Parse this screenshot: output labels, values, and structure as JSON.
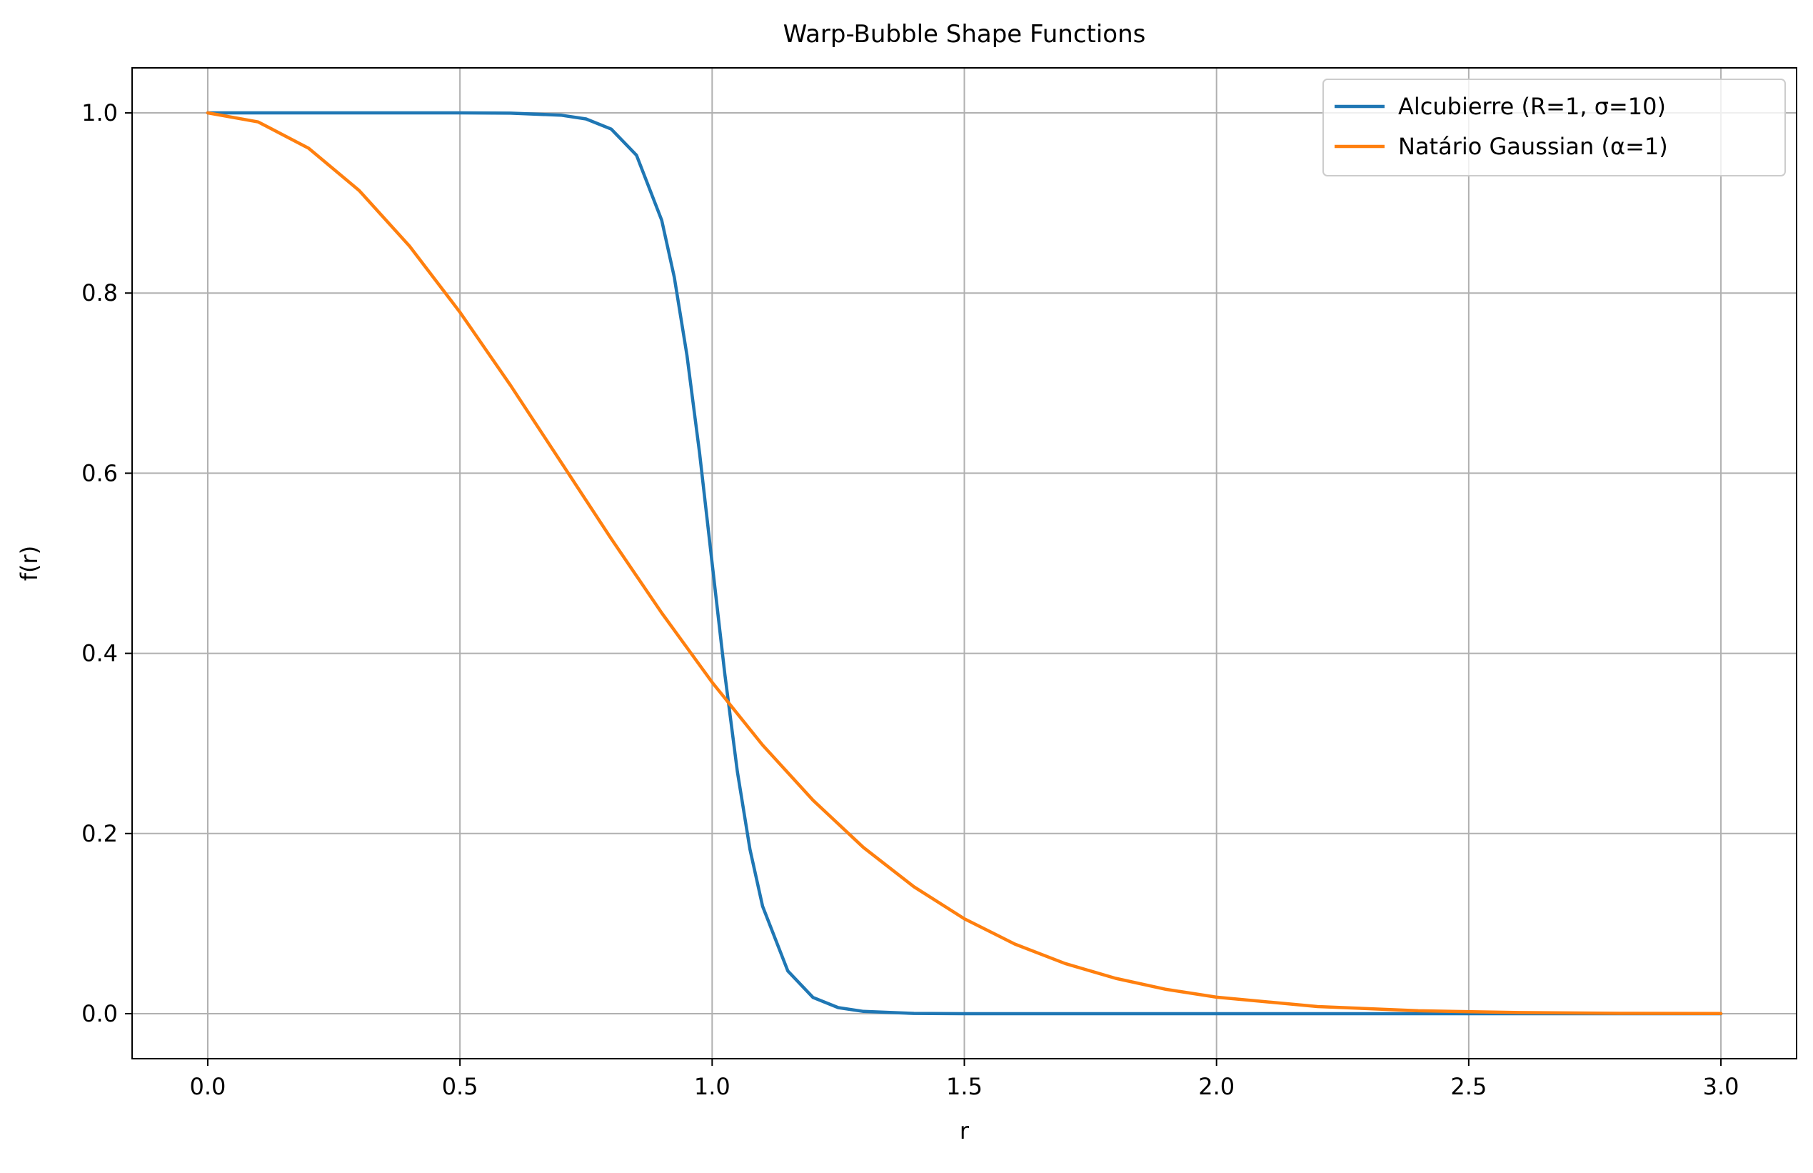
{
  "chart_data": {
    "type": "line",
    "title": "Warp-Bubble Shape Functions",
    "xlabel": "r",
    "ylabel": "f(r)",
    "xlim": [
      -0.15,
      3.15
    ],
    "ylim": [
      -0.05,
      1.05
    ],
    "x_ticks": [
      0.0,
      0.5,
      1.0,
      1.5,
      2.0,
      2.5,
      3.0
    ],
    "x_tick_labels": [
      "0.0",
      "0.5",
      "1.0",
      "1.5",
      "2.0",
      "2.5",
      "3.0"
    ],
    "y_ticks": [
      0.0,
      0.2,
      0.4,
      0.6,
      0.8,
      1.0
    ],
    "y_tick_labels": [
      "0.0",
      "0.2",
      "0.4",
      "0.6",
      "0.8",
      "1.0"
    ],
    "grid": true,
    "legend_position": "upper right",
    "series": [
      {
        "name": "Alcubierre (R=1, σ=10)",
        "color": "#1f77b4",
        "x": [
          0.0,
          0.1,
          0.2,
          0.3,
          0.4,
          0.5,
          0.6,
          0.7,
          0.75,
          0.8,
          0.85,
          0.9,
          0.925,
          0.95,
          0.975,
          1.0,
          1.025,
          1.05,
          1.075,
          1.1,
          1.15,
          1.2,
          1.25,
          1.3,
          1.4,
          1.5,
          2.0,
          2.5,
          3.0
        ],
        "y": [
          1.0,
          1.0,
          1.0,
          1.0,
          1.0,
          1.0,
          0.9997,
          0.9975,
          0.9933,
          0.982,
          0.953,
          0.8808,
          0.8176,
          0.7311,
          0.6225,
          0.5,
          0.3775,
          0.2689,
          0.1824,
          0.1192,
          0.0474,
          0.018,
          0.0067,
          0.0025,
          0.0003,
          0.0,
          0.0,
          0.0,
          0.0
        ]
      },
      {
        "name": "Natário Gaussian (α=1)",
        "color": "#ff7f0e",
        "x": [
          0.0,
          0.1,
          0.2,
          0.3,
          0.4,
          0.5,
          0.6,
          0.7,
          0.8,
          0.9,
          1.0,
          1.1,
          1.2,
          1.3,
          1.4,
          1.5,
          1.6,
          1.7,
          1.8,
          1.9,
          2.0,
          2.2,
          2.4,
          2.6,
          2.8,
          3.0
        ],
        "y": [
          1.0,
          0.99,
          0.9608,
          0.9139,
          0.8521,
          0.7788,
          0.6977,
          0.6126,
          0.5273,
          0.4449,
          0.3679,
          0.2982,
          0.2369,
          0.1845,
          0.1409,
          0.1054,
          0.0773,
          0.0556,
          0.0392,
          0.027,
          0.0183,
          0.0079,
          0.0032,
          0.0012,
          0.0004,
          0.0001
        ]
      }
    ]
  }
}
